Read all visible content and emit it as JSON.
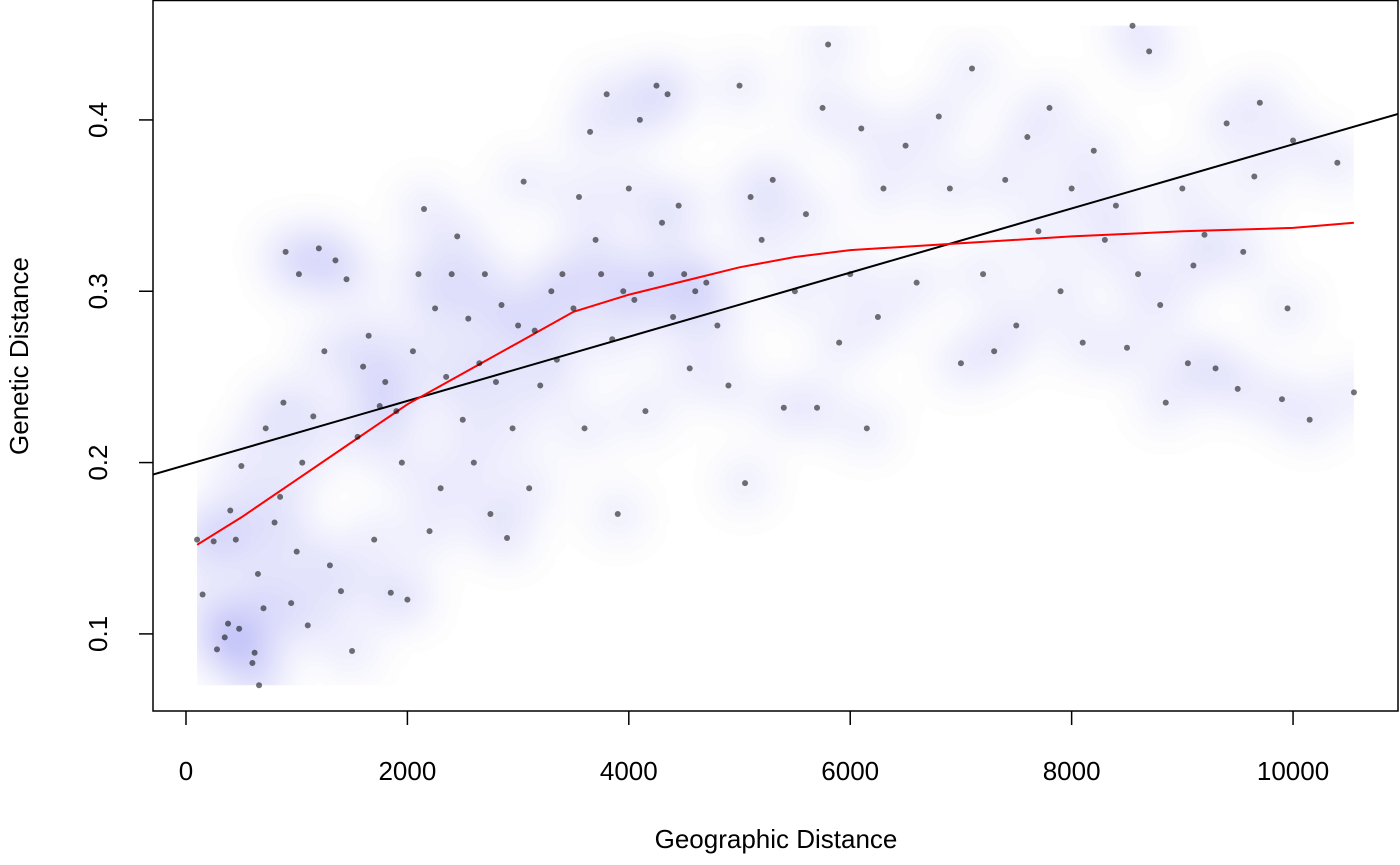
{
  "chart_data": {
    "type": "scatter",
    "x_label": "Geographic Distance",
    "y_label": "Genetic Distance",
    "xlim": [
      -298,
      10948
    ],
    "ylim": [
      0.055,
      0.47
    ],
    "xticks": [
      0,
      2000,
      4000,
      6000,
      8000,
      10000
    ],
    "yticks": [
      0.1,
      0.2,
      0.3,
      0.4
    ],
    "point_color": "#000000",
    "density_colors": [
      "#ffffff",
      "#5555ee",
      "#ffe066",
      "#ff3030"
    ],
    "x": [
      100,
      150,
      250,
      280,
      350,
      380,
      400,
      450,
      480,
      500,
      600,
      620,
      650,
      660,
      700,
      720,
      800,
      850,
      880,
      900,
      950,
      1000,
      1020,
      1050,
      1100,
      1150,
      1200,
      1250,
      1300,
      1350,
      1400,
      1450,
      1500,
      1550,
      1600,
      1650,
      1700,
      1750,
      1800,
      1850,
      1900,
      1950,
      2000,
      2050,
      2100,
      2150,
      2200,
      2250,
      2300,
      2350,
      2400,
      2450,
      2500,
      2550,
      2600,
      2650,
      2700,
      2750,
      2800,
      2850,
      2900,
      2950,
      3000,
      3050,
      3100,
      3150,
      3200,
      3300,
      3350,
      3400,
      3500,
      3550,
      3600,
      3650,
      3700,
      3750,
      3800,
      3850,
      3900,
      3950,
      4000,
      4050,
      4100,
      4150,
      4200,
      4250,
      4300,
      4350,
      4400,
      4450,
      4500,
      4550,
      4600,
      4700,
      4800,
      4900,
      5000,
      5050,
      5100,
      5200,
      5300,
      5400,
      5500,
      5600,
      5700,
      5750,
      5800,
      5900,
      6000,
      6100,
      6150,
      6250,
      6300,
      6500,
      6600,
      6800,
      6900,
      7000,
      7100,
      7200,
      7300,
      7400,
      7500,
      7600,
      7700,
      7800,
      7900,
      8000,
      8100,
      8200,
      8300,
      8400,
      8500,
      8550,
      8600,
      8700,
      8800,
      8850,
      9000,
      9050,
      9100,
      9200,
      9300,
      9400,
      9500,
      9550,
      9650,
      9700,
      9900,
      9950,
      10000,
      10150,
      10400,
      10550
    ],
    "values": [
      0.155,
      0.123,
      0.154,
      0.091,
      0.098,
      0.106,
      0.172,
      0.155,
      0.103,
      0.198,
      0.083,
      0.089,
      0.135,
      0.07,
      0.115,
      0.22,
      0.165,
      0.18,
      0.235,
      0.323,
      0.118,
      0.148,
      0.31,
      0.2,
      0.105,
      0.227,
      0.325,
      0.265,
      0.14,
      0.318,
      0.125,
      0.307,
      0.09,
      0.215,
      0.256,
      0.274,
      0.155,
      0.233,
      0.247,
      0.124,
      0.23,
      0.2,
      0.12,
      0.265,
      0.31,
      0.348,
      0.16,
      0.29,
      0.185,
      0.25,
      0.31,
      0.332,
      0.225,
      0.284,
      0.2,
      0.258,
      0.31,
      0.17,
      0.247,
      0.292,
      0.156,
      0.22,
      0.28,
      0.364,
      0.185,
      0.277,
      0.245,
      0.3,
      0.26,
      0.31,
      0.29,
      0.355,
      0.22,
      0.393,
      0.33,
      0.31,
      0.415,
      0.272,
      0.17,
      0.3,
      0.36,
      0.295,
      0.4,
      0.23,
      0.31,
      0.42,
      0.34,
      0.415,
      0.285,
      0.35,
      0.31,
      0.255,
      0.3,
      0.305,
      0.28,
      0.245,
      0.42,
      0.188,
      0.355,
      0.33,
      0.365,
      0.232,
      0.3,
      0.345,
      0.232,
      0.407,
      0.444,
      0.27,
      0.31,
      0.395,
      0.22,
      0.285,
      0.36,
      0.385,
      0.305,
      0.402,
      0.36,
      0.258,
      0.43,
      0.31,
      0.265,
      0.365,
      0.28,
      0.39,
      0.335,
      0.407,
      0.3,
      0.36,
      0.27,
      0.382,
      0.33,
      0.35,
      0.267,
      0.455,
      0.31,
      0.44,
      0.292,
      0.235,
      0.36,
      0.258,
      0.315,
      0.333,
      0.255,
      0.398,
      0.243,
      0.323,
      0.367,
      0.41,
      0.237,
      0.29,
      0.388,
      0.225,
      0.375,
      0.241
    ],
    "fit_line": {
      "color": "#000000",
      "x": [
        -298,
        10948
      ],
      "values": [
        0.193,
        0.4035
      ]
    },
    "smooth_line": {
      "color": "#ff0000",
      "x": [
        100,
        500,
        1000,
        1500,
        2000,
        2500,
        3000,
        3500,
        4000,
        4500,
        5000,
        5500,
        6000,
        7000,
        8000,
        9000,
        10000,
        10550
      ],
      "values": [
        0.152,
        0.168,
        0.19,
        0.212,
        0.234,
        0.252,
        0.27,
        0.288,
        0.298,
        0.306,
        0.314,
        0.32,
        0.324,
        0.328,
        0.332,
        0.335,
        0.337,
        0.34
      ]
    }
  }
}
